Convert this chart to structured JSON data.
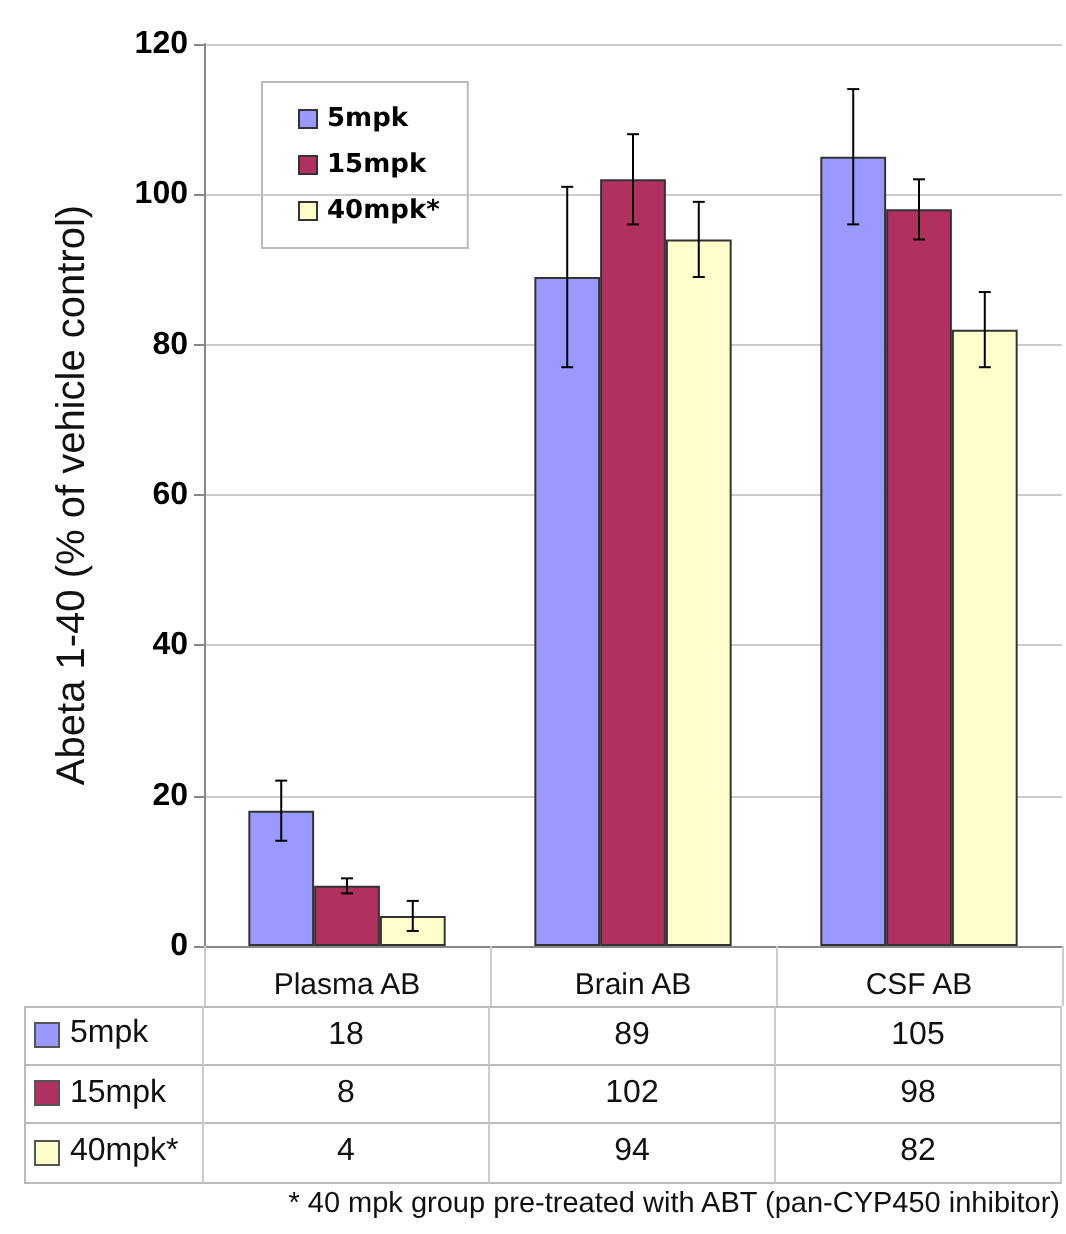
{
  "chart_data": {
    "type": "bar",
    "ylabel": "Abeta 1-40 (% of vehicle control)",
    "categories": [
      "Plasma AB",
      "Brain AB",
      "CSF AB"
    ],
    "series": [
      {
        "name": "5mpk",
        "color": "#9999ff",
        "values": [
          18,
          89,
          105
        ],
        "errors": [
          4,
          12,
          9
        ]
      },
      {
        "name": "15mpk",
        "color": "#b03060",
        "values": [
          8,
          102,
          98
        ],
        "errors": [
          1,
          6,
          4
        ]
      },
      {
        "name": "40mpk*",
        "color": "#ffffcc",
        "values": [
          4,
          94,
          82
        ],
        "errors": [
          2,
          5,
          5
        ]
      }
    ],
    "ylim": [
      0,
      120
    ],
    "yticks": [
      0,
      20,
      40,
      60,
      80,
      100,
      120
    ],
    "grid": "y",
    "legend": "top left",
    "data_labels": true,
    "annotations": [
      "* 40 mpk group pre-treated with ABT (pan-CYP450 inhibitor)"
    ]
  }
}
